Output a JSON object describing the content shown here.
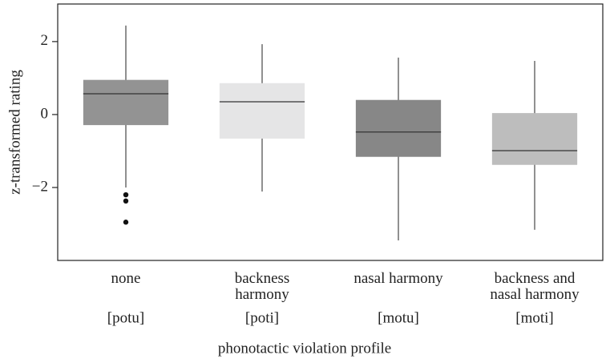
{
  "chart_data": {
    "type": "box",
    "xlabel": "phonotactic violation profile",
    "ylabel": "z-transformed rating",
    "categories": [
      "none",
      "backness harmony",
      "nasal harmony",
      "backness and nasal harmony"
    ],
    "sublabels": [
      "[potu]",
      "[poti]",
      "[motu]",
      "[moti]"
    ],
    "boxes": [
      {
        "whisker_low": -2.0,
        "q1": -0.29,
        "median": 0.57,
        "q3": 0.95,
        "whisker_high": 2.44,
        "outliers": [
          -2.2,
          -2.37,
          -2.95
        ],
        "color": "#939393"
      },
      {
        "whisker_low": -2.11,
        "q1": -0.66,
        "median": 0.35,
        "q3": 0.86,
        "whisker_high": 1.93,
        "outliers": [],
        "color": "#e5e5e6"
      },
      {
        "whisker_low": -3.45,
        "q1": -1.16,
        "median": -0.48,
        "q3": 0.4,
        "whisker_high": 1.56,
        "outliers": [],
        "color": "#878787"
      },
      {
        "whisker_low": -3.16,
        "q1": -1.38,
        "median": -0.99,
        "q3": 0.04,
        "whisker_high": 1.47,
        "outliers": [],
        "color": "#bdbdbd"
      }
    ],
    "ylim": [
      -4,
      3.03
    ],
    "yticks": [
      {
        "value": -2,
        "label": "−2"
      },
      0,
      2
    ]
  }
}
